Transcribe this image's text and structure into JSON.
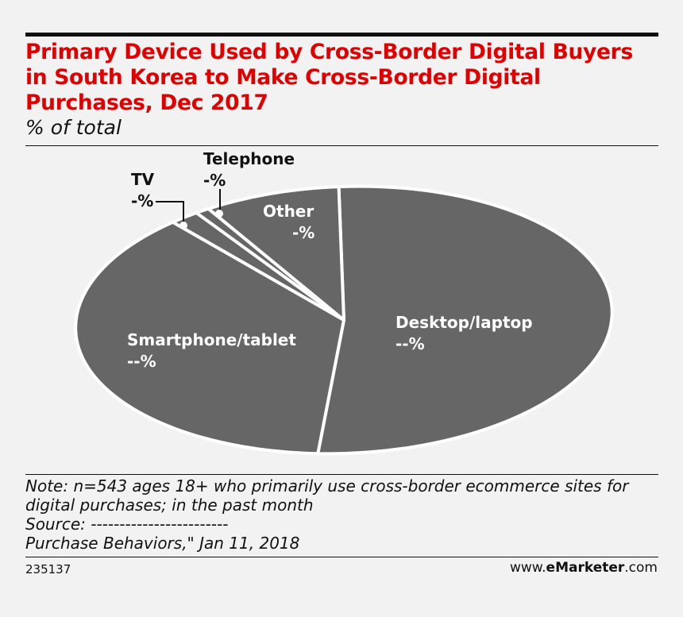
{
  "header": {
    "title": "Primary Device Used by Cross-Border Digital Buyers in South Korea to Make Cross-Border Digital Purchases, Dec 2017",
    "subtitle": "% of total"
  },
  "chart_data": {
    "type": "pie",
    "title": "Primary Device Used by Cross-Border Digital Buyers in South Korea to Make Cross-Border Digital Purchases, Dec 2017",
    "subtitle": "% of total",
    "slice_color": "#666666",
    "separator_color": "#ffffff",
    "slices": [
      {
        "name": "Desktop/laptop",
        "display_value": "--%",
        "share": 0.5185,
        "label_inside": true
      },
      {
        "name": "Smartphone/tablet",
        "display_value": "--%",
        "share": 0.3745,
        "label_inside": true
      },
      {
        "name": "TV",
        "display_value": "-%",
        "share": 0.0174,
        "label_inside": false
      },
      {
        "name": "Telephone",
        "display_value": "-%",
        "share": 0.0084,
        "label_inside": false
      },
      {
        "name": "Other",
        "display_value": "-%",
        "share": 0.0812,
        "label_inside": true
      }
    ]
  },
  "footer": {
    "note_line1": "Note: n=543 ages 18+ who primarily use cross-border ecommerce sites for",
    "note_line2": "digital purchases; in the past month",
    "source": "Source: ------------------------",
    "source_line2": "Purchase Behaviors,\" Jan 11, 2018",
    "chart_id": "235137",
    "brand_prefix": "www.",
    "brand_name": "eMarketer",
    "brand_suffix": ".com"
  }
}
